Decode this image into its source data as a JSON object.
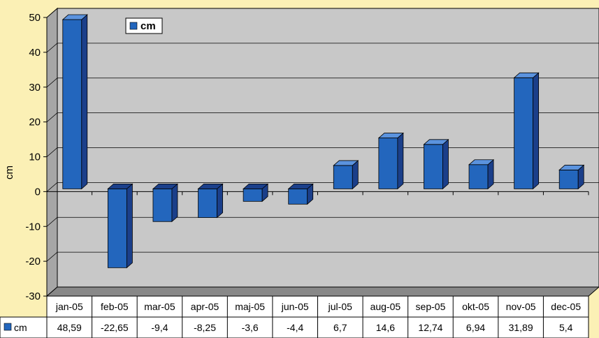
{
  "chart_data": {
    "type": "bar",
    "categories": [
      "jan-05",
      "feb-05",
      "mar-05",
      "apr-05",
      "maj-05",
      "jun-05",
      "jul-05",
      "aug-05",
      "sep-05",
      "okt-05",
      "nov-05",
      "dec-05"
    ],
    "series": [
      {
        "name": "cm",
        "values": [
          48.59,
          -22.65,
          -9.4,
          -8.25,
          -3.6,
          -4.4,
          6.7,
          14.6,
          12.74,
          6.94,
          31.89,
          5.4
        ]
      }
    ],
    "value_labels": [
      "48,59",
      "-22,65",
      "-9,4",
      "-8,25",
      "-3,6",
      "-4,4",
      "6,7",
      "14,6",
      "12,74",
      "6,94",
      "31,89",
      "5,4"
    ],
    "ylabel": "cm",
    "yticks": [
      "50",
      "40",
      "30",
      "20",
      "10",
      "0",
      "-10",
      "-20",
      "-30"
    ],
    "ylim": [
      -30,
      50
    ],
    "grid": true,
    "three_d": true,
    "legend_position": "top-left",
    "data_table": true,
    "colors": {
      "page_background": "#fbf0b5",
      "plot_background": "#c8c8c8",
      "plot_side": "#a6a6a6",
      "plot_floor": "#888888",
      "bar_front": "#2366bd",
      "bar_top": "#5b93de",
      "bar_side": "#1b3f8a",
      "table_background": "#ffffff"
    }
  }
}
